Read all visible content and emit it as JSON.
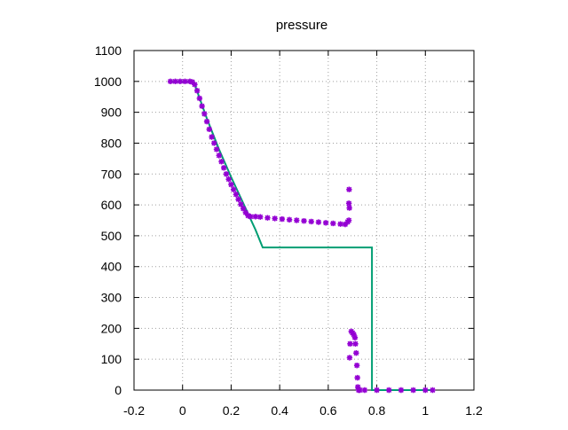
{
  "chart_data": {
    "type": "line",
    "title": "pressure",
    "xlabel": "",
    "ylabel": "",
    "xlim": [
      -0.2,
      1.2
    ],
    "ylim": [
      0,
      1100
    ],
    "xticks": [
      "-0.2",
      "0",
      "0.2",
      "0.4",
      "0.6",
      "0.8",
      "1",
      "1.2"
    ],
    "yticks": [
      "0",
      "100",
      "200",
      "300",
      "400",
      "500",
      "600",
      "700",
      "800",
      "900",
      "1000",
      "1100"
    ],
    "grid": true,
    "legend": "none",
    "series": [
      {
        "kind": "line",
        "color": "#009e73",
        "x": [
          -0.05,
          0.03,
          0.05,
          0.1,
          0.15,
          0.2,
          0.25,
          0.3,
          0.33,
          0.78,
          0.78,
          1.03
        ],
        "y": [
          1000,
          1000,
          990,
          880,
          780,
          690,
          605,
          520,
          462,
          462,
          0,
          0
        ]
      },
      {
        "kind": "points",
        "marker": "asterisk",
        "color": "#9400d3",
        "x": [
          -0.05,
          -0.03,
          -0.01,
          0.01,
          0.03,
          0.04,
          0.05,
          0.06,
          0.07,
          0.08,
          0.09,
          0.1,
          0.11,
          0.12,
          0.13,
          0.14,
          0.15,
          0.16,
          0.17,
          0.18,
          0.19,
          0.2,
          0.21,
          0.22,
          0.23,
          0.24,
          0.25,
          0.26,
          0.27,
          0.28,
          0.3,
          0.32,
          0.35,
          0.38,
          0.41,
          0.44,
          0.47,
          0.5,
          0.53,
          0.56,
          0.59,
          0.62,
          0.65,
          0.67,
          0.68,
          0.685,
          0.685,
          0.686,
          0.687,
          0.688,
          0.69,
          0.695,
          0.7,
          0.705,
          0.71,
          0.712,
          0.715,
          0.718,
          0.72,
          0.722,
          0.725,
          0.73,
          0.75,
          0.8,
          0.85,
          0.9,
          0.95,
          1.0,
          1.03
        ],
        "y": [
          1000,
          1000,
          1000,
          1000,
          1000,
          998,
          990,
          970,
          945,
          920,
          895,
          870,
          845,
          820,
          800,
          780,
          760,
          740,
          720,
          700,
          683,
          666,
          650,
          634,
          618,
          602,
          588,
          575,
          565,
          562,
          562,
          561,
          558,
          556,
          554,
          552,
          550,
          548,
          546,
          544,
          542,
          540,
          538,
          537,
          545,
          550,
          605,
          650,
          590,
          105,
          150,
          190,
          185,
          180,
          170,
          150,
          120,
          80,
          40,
          10,
          0,
          0,
          0,
          0,
          0,
          0,
          0,
          0,
          0
        ]
      }
    ]
  }
}
